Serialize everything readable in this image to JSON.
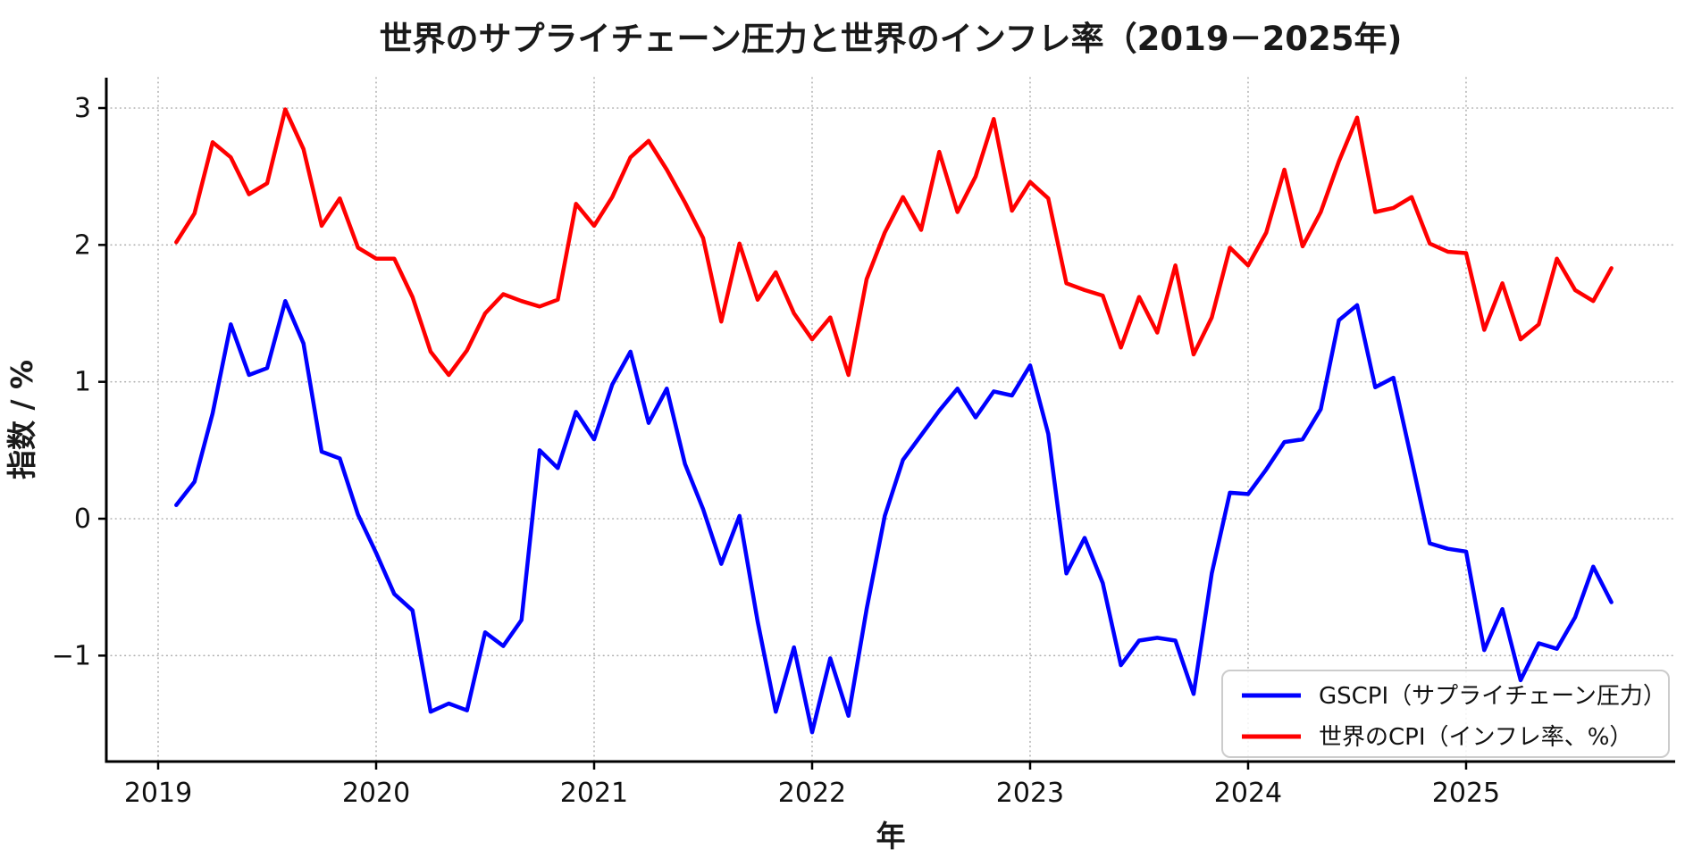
{
  "chart_data": {
    "type": "line",
    "title": "世界のサプライチェーン圧力と世界のインフレ率（2019－2025年)",
    "xlabel": "年",
    "ylabel": "指数 / %",
    "x_tick_labels": [
      "2019",
      "2020",
      "2021",
      "2022",
      "2023",
      "2024",
      "2025"
    ],
    "y_tick_labels": [
      "3",
      "2",
      "1",
      "0",
      "−1"
    ],
    "y_tick_values": [
      3,
      2,
      1,
      0,
      -1
    ],
    "ylim": [
      -1.77,
      3.22
    ],
    "grid": "dotted",
    "legend_position": "lower right",
    "months": [
      "2019-01",
      "2019-02",
      "2019-03",
      "2019-04",
      "2019-05",
      "2019-06",
      "2019-07",
      "2019-08",
      "2019-09",
      "2019-10",
      "2019-11",
      "2019-12",
      "2020-01",
      "2020-02",
      "2020-03",
      "2020-04",
      "2020-05",
      "2020-06",
      "2020-07",
      "2020-08",
      "2020-09",
      "2020-10",
      "2020-11",
      "2020-12",
      "2021-01",
      "2021-02",
      "2021-03",
      "2021-04",
      "2021-05",
      "2021-06",
      "2021-07",
      "2021-08",
      "2021-09",
      "2021-10",
      "2021-11",
      "2021-12",
      "2022-01",
      "2022-02",
      "2022-03",
      "2022-04",
      "2022-05",
      "2022-06",
      "2022-07",
      "2022-08",
      "2022-09",
      "2022-10",
      "2022-11",
      "2022-12",
      "2023-01",
      "2023-02",
      "2023-03",
      "2023-04",
      "2023-05",
      "2023-06",
      "2023-07",
      "2023-08",
      "2023-09",
      "2023-10",
      "2023-11",
      "2023-12",
      "2024-01",
      "2024-02",
      "2024-03",
      "2024-04",
      "2024-05",
      "2024-06",
      "2024-07",
      "2024-08",
      "2024-09",
      "2024-10",
      "2024-11",
      "2024-12",
      "2025-01",
      "2025-02",
      "2025-03",
      "2025-04",
      "2025-05",
      "2025-06",
      "2025-07",
      "2025-08"
    ],
    "series": [
      {
        "name": "GSCPI（サプライチェーン圧力）",
        "color": "#0000ff",
        "values": [
          0.1,
          0.27,
          0.77,
          1.42,
          1.05,
          1.1,
          1.59,
          1.28,
          0.49,
          0.44,
          0.03,
          -0.25,
          -0.55,
          -0.67,
          -1.41,
          -1.35,
          -1.4,
          -0.83,
          -0.93,
          -0.74,
          0.5,
          0.37,
          0.78,
          0.58,
          0.98,
          1.22,
          0.7,
          0.95,
          0.4,
          0.07,
          -0.33,
          0.02,
          -0.75,
          -1.41,
          -0.94,
          -1.56,
          -1.02,
          -1.44,
          -0.66,
          0.02,
          0.43,
          0.61,
          0.79,
          0.95,
          0.74,
          0.93,
          0.9,
          1.12,
          0.62,
          -0.4,
          -0.14,
          -0.47,
          -1.07,
          -0.89,
          -0.87,
          -0.89,
          -1.28,
          -0.4,
          0.19,
          0.18,
          0.36,
          0.56,
          0.58,
          0.8,
          1.45,
          1.56,
          0.96,
          1.03,
          0.43,
          -0.18,
          -0.22,
          -0.24,
          -0.96,
          -0.66,
          -1.18,
          -0.91,
          -0.95,
          -0.72,
          -0.35,
          -0.61
        ]
      },
      {
        "name": "世界のCPI（インフレ率、%）",
        "color": "#ff0000",
        "values": [
          2.02,
          2.23,
          2.75,
          2.64,
          2.37,
          2.45,
          2.99,
          2.7,
          2.14,
          2.34,
          1.98,
          1.9,
          1.9,
          1.62,
          1.22,
          1.05,
          1.23,
          1.5,
          1.64,
          1.59,
          1.55,
          1.6,
          2.3,
          2.14,
          2.35,
          2.64,
          2.76,
          2.55,
          2.31,
          2.05,
          1.44,
          2.01,
          1.6,
          1.8,
          1.5,
          1.31,
          1.47,
          1.05,
          1.75,
          2.09,
          2.35,
          2.11,
          2.68,
          2.24,
          2.5,
          2.92,
          2.25,
          2.46,
          2.34,
          1.72,
          1.67,
          1.63,
          1.25,
          1.62,
          1.36,
          1.85,
          1.2,
          1.47,
          1.98,
          1.85,
          2.09,
          2.55,
          1.99,
          2.24,
          2.61,
          2.93,
          2.24,
          2.27,
          2.35,
          2.01,
          1.95,
          1.94,
          1.38,
          1.72,
          1.31,
          1.42,
          1.9,
          1.67,
          1.59,
          1.83
        ]
      }
    ],
    "style": {
      "grid_color": "#b0b0b0",
      "spine_color": "#000000",
      "background": "#ffffff",
      "line_width": 4.5,
      "legend_border_color": "#cccccc"
    }
  }
}
